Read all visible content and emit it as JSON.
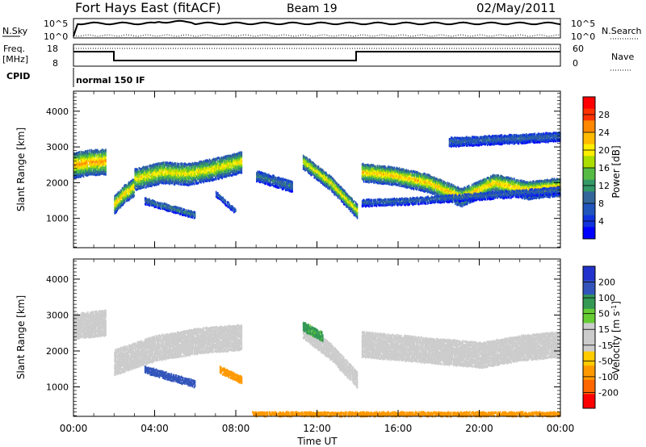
{
  "header": {
    "title": "Fort Hays East (fitACF)",
    "beam": "Beam 19",
    "date": "02/May/2011"
  },
  "noise_panel": {
    "left_label": "N.Sky",
    "left_ticks": [
      "10^5",
      "10^0"
    ],
    "right_ticks": [
      "10^5",
      "10^0"
    ],
    "right_label": "N.Search"
  },
  "freq_panel": {
    "left_label_1": "Freq.",
    "left_label_2": "[MHz]",
    "left_ticks": [
      "18",
      "8"
    ],
    "right_ticks": [
      "60",
      "0"
    ],
    "right_label": "Nave"
  },
  "cpid": {
    "label": "CPID",
    "value": "normal 150 IF"
  },
  "power_colorbar": {
    "label": "Power [dB]",
    "ticks": [
      "28",
      "24",
      "20",
      "16",
      "12",
      "8",
      "4"
    ],
    "colors": [
      "#ff0000",
      "#ff3300",
      "#ff8800",
      "#ffbb00",
      "#ffee00",
      "#aadd00",
      "#55bb44",
      "#339966",
      "#336699",
      "#2255bb",
      "#1133dd",
      "#0000ff"
    ]
  },
  "velocity_colorbar": {
    "label": "Velocity [m s^-1]",
    "ticks": [
      "200",
      "100",
      "50",
      "15",
      "-15",
      "-50",
      "-100",
      "-200"
    ],
    "colors": [
      "#2233cc",
      "#3355bb",
      "#339955",
      "#66cc33",
      "#cccccc",
      "#cccccc",
      "#ffcc00",
      "#ff9900",
      "#ff6600",
      "#ff0000"
    ]
  },
  "xaxis": {
    "label": "Time UT",
    "ticks": [
      "00:00",
      "04:00",
      "08:00",
      "12:00",
      "16:00",
      "20:00",
      "00:00"
    ]
  },
  "chart_data": [
    {
      "type": "heatmap",
      "title": "Power",
      "xlabel": "Time UT",
      "ylabel": "Slant Range [km]",
      "ylim": [
        180,
        4560
      ],
      "yticks": [
        1000,
        2000,
        3000,
        4000
      ],
      "xlim": [
        0,
        24
      ],
      "colorbar_label": "Power [dB]",
      "clim": [
        0,
        30
      ],
      "echo_bands": [
        {
          "t0": 0.0,
          "t1": 1.6,
          "r": [
            2500,
            2580,
            2600
          ],
          "w": 700,
          "p": 24
        },
        {
          "t0": 2.0,
          "t1": 3.0,
          "r": [
            1400,
            1700,
            1900
          ],
          "w": 500,
          "p": 22
        },
        {
          "t0": 3.0,
          "t1": 8.3,
          "r": [
            2100,
            2300,
            2250,
            2400,
            2600
          ],
          "w": 600,
          "p": 20
        },
        {
          "t0": 3.5,
          "t1": 6.0,
          "r": [
            1500,
            1300,
            1100
          ],
          "w": 180,
          "p": 10
        },
        {
          "t0": 7.0,
          "t1": 8.0,
          "r": [
            1700,
            1200
          ],
          "w": 150,
          "p": 8
        },
        {
          "t0": 9.0,
          "t1": 10.8,
          "r": [
            2200,
            1900
          ],
          "w": 300,
          "p": 10
        },
        {
          "t0": 11.3,
          "t1": 14.0,
          "r": [
            2600,
            2000,
            1200
          ],
          "w": 400,
          "p": 20
        },
        {
          "t0": 14.2,
          "t1": 24.0,
          "r": [
            2300,
            2200,
            2000,
            1600,
            2000,
            1800,
            1900
          ],
          "w": 500,
          "p": 22
        },
        {
          "t0": 14.2,
          "t1": 24.0,
          "r": [
            1450,
            1500,
            1600,
            1700,
            1800
          ],
          "w": 200,
          "p": 8
        },
        {
          "t0": 18.5,
          "t1": 24.0,
          "r": [
            3150,
            3300
          ],
          "w": 250,
          "p": 8
        }
      ]
    },
    {
      "type": "heatmap",
      "title": "Velocity",
      "xlabel": "Time UT",
      "ylabel": "Slant Range [km]",
      "ylim": [
        180,
        4560
      ],
      "yticks": [
        1000,
        2000,
        3000,
        4000
      ],
      "xlim": [
        0,
        24
      ],
      "colorbar_label": "Velocity [m s^-1]",
      "clim": [
        -200,
        200
      ],
      "echo_bands": [
        {
          "t0": 0.0,
          "t1": 1.6,
          "r": [
            2700,
            2800
          ],
          "w": 700,
          "v": 0
        },
        {
          "t0": 2.0,
          "t1": 8.3,
          "r": [
            1700,
            2100,
            2300,
            2400
          ],
          "w": 700,
          "v": 0
        },
        {
          "t0": 3.5,
          "t1": 6.0,
          "r": [
            1500,
            1300,
            1100
          ],
          "w": 200,
          "v": 120
        },
        {
          "t0": 7.2,
          "t1": 8.3,
          "r": [
            1500,
            1200
          ],
          "w": 200,
          "v": -60
        },
        {
          "t0": 11.3,
          "t1": 14.0,
          "r": [
            2600,
            2000,
            1200
          ],
          "w": 450,
          "v": 0
        },
        {
          "t0": 11.3,
          "t1": 12.3,
          "r": [
            2700,
            2400
          ],
          "w": 250,
          "v": 40
        },
        {
          "t0": 14.2,
          "t1": 24.0,
          "r": [
            2200,
            2100,
            2000,
            1900,
            2100,
            2200
          ],
          "w": 700,
          "v": 0
        },
        {
          "t0": 8.8,
          "t1": 24.0,
          "r": [
            250,
            250
          ],
          "w": 150,
          "v": -60
        }
      ]
    }
  ]
}
